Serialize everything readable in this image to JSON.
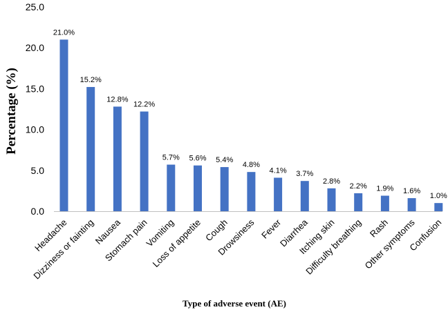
{
  "chart_data": {
    "type": "bar",
    "title": "",
    "xlabel": "Type of adverse event (AE)",
    "ylabel": "Percentage (%)",
    "ylim": [
      0,
      25
    ],
    "yticks": [
      "0.0",
      "5.0",
      "10.0",
      "15.0",
      "20.0",
      "25.0"
    ],
    "categories": [
      "Headache",
      "Dizziness or fainting",
      "Nausea",
      "Stomach pain",
      "Vomiting",
      "Loss of appetite",
      "Cough",
      "Drowsiness",
      "Fever",
      "Diarrhea",
      "Itching skin",
      "Difficulty breathing",
      "Rash",
      "Other symptoms",
      "Confusion"
    ],
    "values": [
      21.0,
      15.2,
      12.8,
      12.2,
      5.7,
      5.6,
      5.4,
      4.8,
      4.1,
      3.7,
      2.8,
      2.2,
      1.9,
      1.6,
      1.0
    ],
    "data_labels": [
      "21.0%",
      "15.2%",
      "12.8%",
      "12.2%",
      "5.7%",
      "5.6%",
      "5.4%",
      "4.8%",
      "4.1%",
      "3.7%",
      "2.8%",
      "2.2%",
      "1.9%",
      "1.6%",
      "1.0%"
    ],
    "bar_color": "#4472C4",
    "grid": false,
    "legend": "none"
  }
}
